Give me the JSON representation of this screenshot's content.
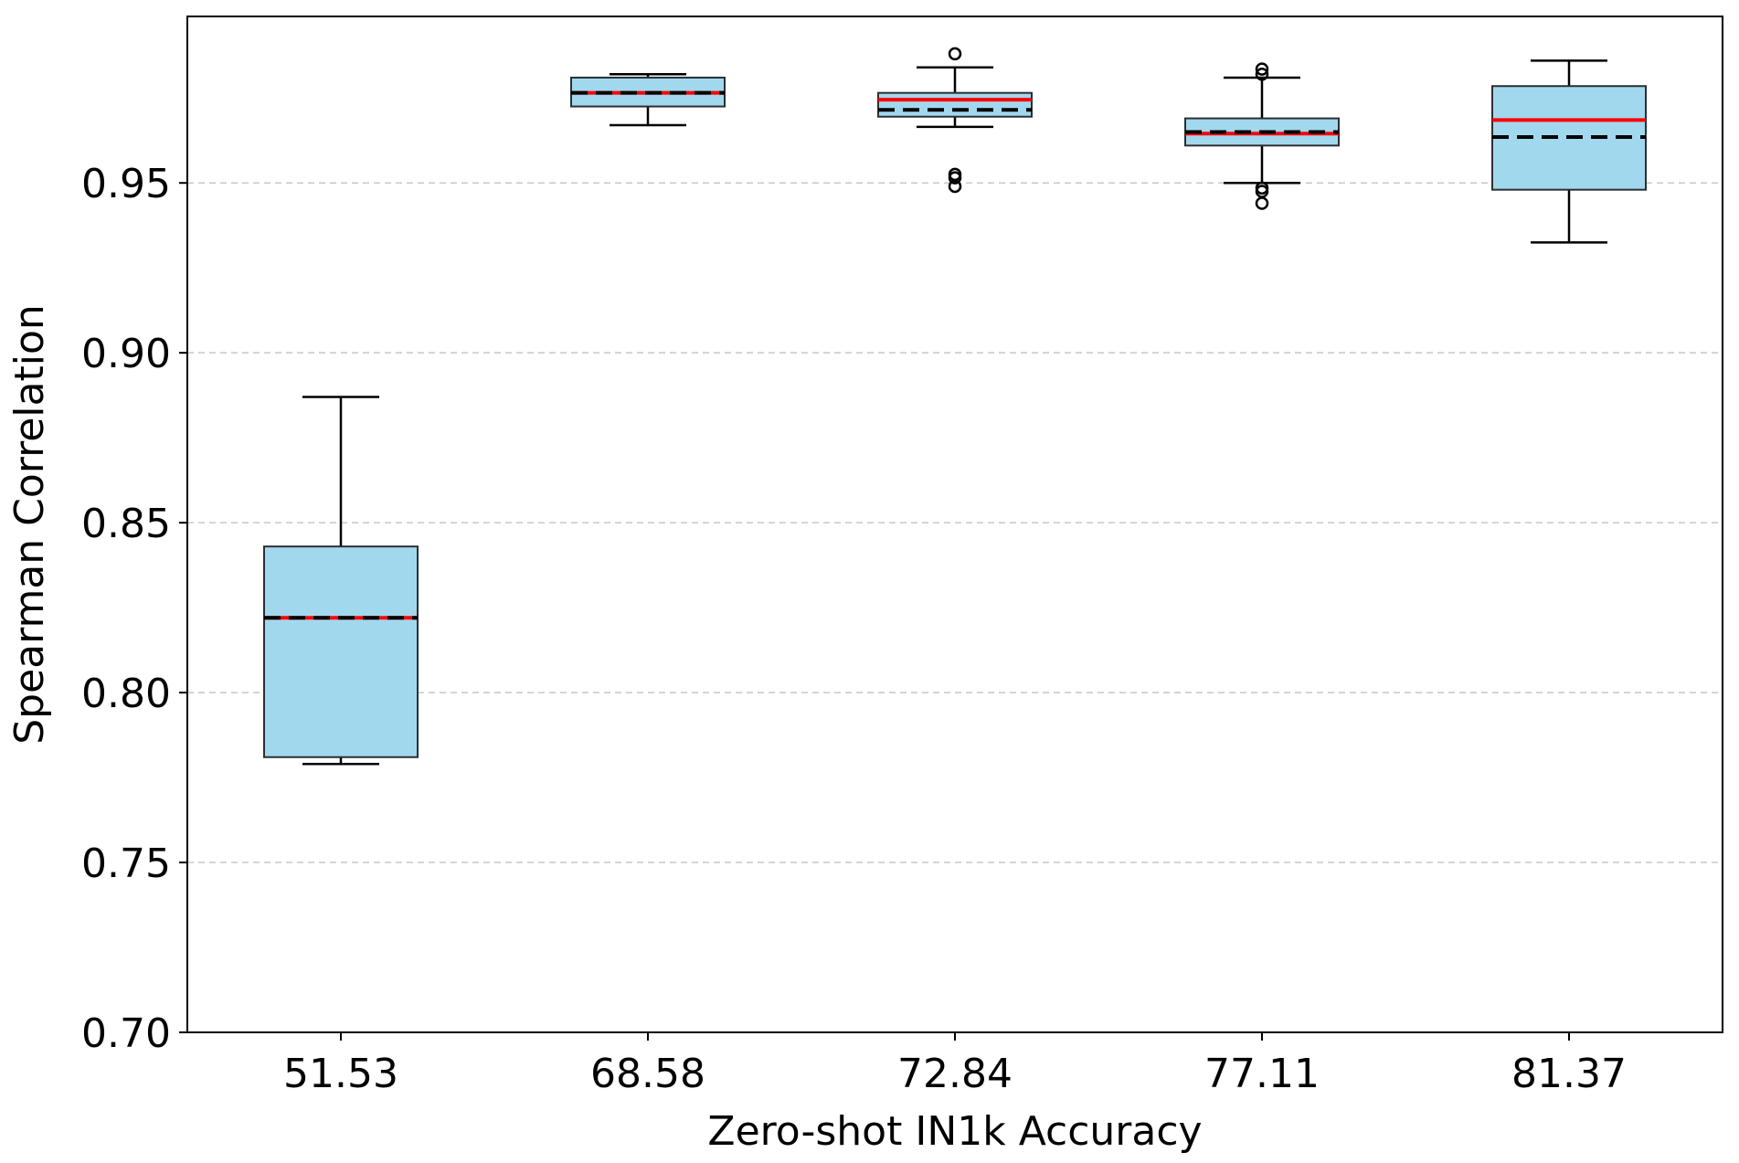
{
  "chart_data": {
    "type": "box",
    "title": "",
    "xlabel": "Zero-shot IN1k Accuracy",
    "ylabel": "Spearman Correlation",
    "ylim": [
      0.7,
      0.999
    ],
    "yticks": [
      "0.70",
      "0.75",
      "0.80",
      "0.85",
      "0.90",
      "0.95"
    ],
    "ytick_values": [
      0.7,
      0.75,
      0.8,
      0.85,
      0.9,
      0.95
    ],
    "grid": "y-dashed",
    "categories": [
      "51.53",
      "68.58",
      "72.84",
      "77.11",
      "81.37"
    ],
    "boxes": [
      {
        "category": "51.53",
        "whisker_low": 0.779,
        "q1": 0.781,
        "median": 0.822,
        "mean": 0.822,
        "q3": 0.843,
        "whisker_high": 0.887,
        "outliers": []
      },
      {
        "category": "68.58",
        "whisker_low": 0.967,
        "q1": 0.9725,
        "median": 0.9765,
        "mean": 0.9765,
        "q3": 0.981,
        "whisker_high": 0.982,
        "outliers": []
      },
      {
        "category": "72.84",
        "whisker_low": 0.9665,
        "q1": 0.9695,
        "median": 0.9745,
        "mean": 0.9715,
        "q3": 0.9765,
        "whisker_high": 0.984,
        "outliers": [
          0.988,
          0.9525,
          0.9515,
          0.949
        ]
      },
      {
        "category": "77.11",
        "whisker_low": 0.95,
        "q1": 0.961,
        "median": 0.9645,
        "mean": 0.965,
        "q3": 0.969,
        "whisker_high": 0.981,
        "outliers": [
          0.9835,
          0.982,
          0.9485,
          0.9475,
          0.944
        ]
      },
      {
        "category": "81.37",
        "whisker_low": 0.9325,
        "q1": 0.948,
        "median": 0.9685,
        "mean": 0.9635,
        "q3": 0.9785,
        "whisker_high": 0.986,
        "outliers": []
      }
    ],
    "colors": {
      "box_fill": "#a2d8ee",
      "box_edge": "#2b2f33",
      "median": "#ff0000",
      "mean": "#000000",
      "grid": "#c8c8c8"
    }
  }
}
